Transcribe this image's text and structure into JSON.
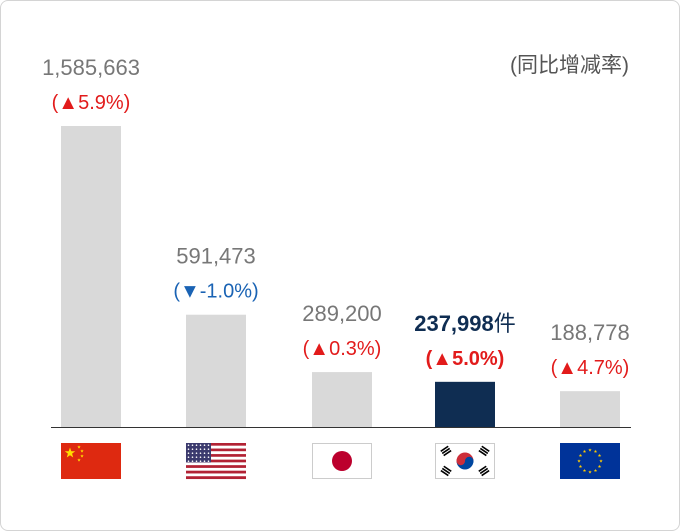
{
  "note": "(同比增减率)",
  "unit_suffix": "件",
  "colors": {
    "bar": "#d9d9d9",
    "highlight": "#0f2d52",
    "up": "#e21b1b",
    "down": "#1a63b4"
  },
  "chart_data": {
    "type": "bar",
    "categories": [
      "China",
      "USA",
      "Japan",
      "Korea",
      "EU"
    ],
    "values": [
      1585663,
      591473,
      289200,
      237998,
      188778
    ],
    "value_labels": [
      "1,585,663",
      "591,473",
      "289,200",
      "237,998",
      "188,778"
    ],
    "change_labels": [
      "(▲5.9%)",
      "(▼-1.0%)",
      "(▲0.3%)",
      "(▲5.0%)",
      "(▲4.7%)"
    ],
    "change_direction": [
      "up",
      "down",
      "up",
      "up",
      "up"
    ],
    "highlight_index": 3,
    "flags": [
      "flag-china-icon",
      "flag-usa-icon",
      "flag-japan-icon",
      "flag-korea-icon",
      "flag-eu-icon"
    ],
    "ylim": [
      0,
      1585663
    ]
  }
}
